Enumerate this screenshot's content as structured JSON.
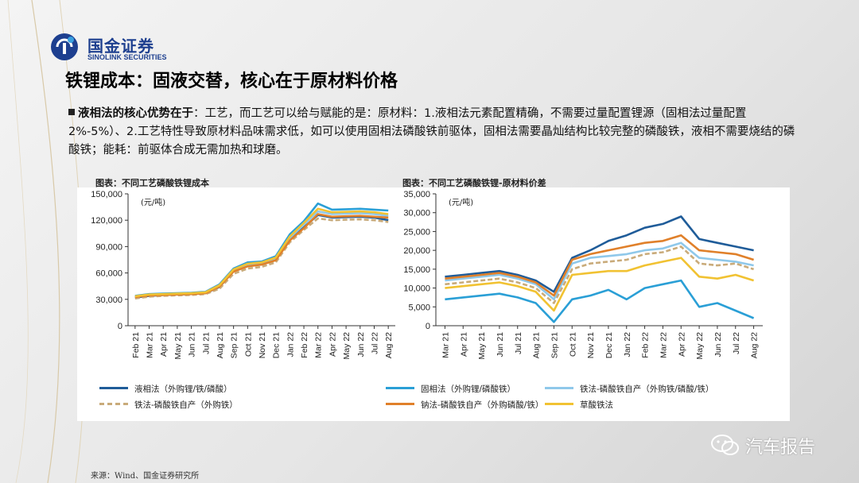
{
  "logo": {
    "name_cn": "国金证券",
    "name_en": "SINOLINK SECURITIES"
  },
  "page_title": "铁锂成本：固液交替，核心在于原材料价格",
  "bullet": {
    "lead": "液相法的核心优势在于",
    "body": "：工艺，而工艺可以给与赋能的是：原材料：1.液相法元素配置精确，不需要过量配置锂源（固相法过量配置2%-5%）、2.工艺特性导致原材料品味需求低，如可以使用固相法磷酸铁前驱体，固相法需要晶灿结构比较完整的磷酸铁，液相不需要烧结的磷酸铁；能耗：前驱体合成无需加热和球磨。"
  },
  "chart_data": [
    {
      "type": "line",
      "title": "图表：不同工艺磷酸铁锂成本",
      "unit_label": "(元/吨)",
      "ylim": [
        0,
        150000
      ],
      "yticks": [
        "0",
        "30,000",
        "60,000",
        "90,000",
        "120,000",
        "150,000"
      ],
      "ytick_values": [
        0,
        30000,
        60000,
        90000,
        120000,
        150000
      ],
      "categories": [
        "Feb 21",
        "Mar 21",
        "Apr 21",
        "May 21",
        "Jun 21",
        "Jul 21",
        "Aug 21",
        "Sep 21",
        "Oct 21",
        "Nov 21",
        "Dec 21",
        "Jan 22",
        "Feb 22",
        "Mar 22",
        "Apr 22",
        "May 22",
        "Jun 22",
        "Jul 22",
        "Aug 22"
      ],
      "series": [
        {
          "name": "液相法（外购锂/铁/磷酸）",
          "color": "#1f5c99",
          "values": [
            32000,
            34000,
            35000,
            35500,
            36000,
            37000,
            44000,
            62000,
            68000,
            70000,
            75000,
            98000,
            112000,
            126000,
            123000,
            123500,
            124000,
            123000,
            120000
          ]
        },
        {
          "name": "固相法（外购锂/磷酸铁）",
          "color": "#2a9fd6",
          "values": [
            34000,
            36000,
            36500,
            37000,
            37500,
            38500,
            47000,
            65000,
            72000,
            73000,
            79000,
            104000,
            119000,
            139000,
            132000,
            132500,
            133000,
            132000,
            131000
          ]
        },
        {
          "name": "铁法-磷酸铁自产（外购铁/磷酸/铁）",
          "color": "#8fc8ea",
          "values": [
            33000,
            35000,
            35500,
            36000,
            36500,
            37500,
            45000,
            63000,
            69500,
            71000,
            76500,
            100000,
            115000,
            130000,
            127000,
            127500,
            128000,
            127000,
            125000
          ]
        },
        {
          "name": "铁法-磷酸铁自产（外购铁）",
          "color": "#c9ab7a",
          "dashed": true,
          "values": [
            31000,
            33000,
            34000,
            34500,
            35000,
            36000,
            42000,
            59000,
            65000,
            67000,
            72000,
            95000,
            109000,
            122000,
            120000,
            120500,
            121000,
            120000,
            118000
          ]
        },
        {
          "name": "钠法-磷酸铁自产（外购磷酸/铁）",
          "color": "#e0802a",
          "values": [
            32500,
            34500,
            35000,
            35500,
            36000,
            37000,
            44500,
            61500,
            67500,
            69500,
            74500,
            97000,
            111000,
            127000,
            124000,
            124500,
            125000,
            124000,
            123000
          ]
        },
        {
          "name": "草酸铁法",
          "color": "#f1c232",
          "values": [
            33500,
            35500,
            36000,
            36500,
            37000,
            38000,
            46000,
            64000,
            70500,
            72000,
            77500,
            101500,
            117000,
            133000,
            129000,
            129500,
            130000,
            129000,
            127000
          ]
        }
      ]
    },
    {
      "type": "line",
      "title": "图表：不同工艺磷酸铁锂-原材料价差",
      "unit_label": "(元/吨)",
      "ylim": [
        0,
        35000
      ],
      "yticks": [
        "0",
        "5,000",
        "10,000",
        "15,000",
        "20,000",
        "25,000",
        "30,000",
        "35,000"
      ],
      "ytick_values": [
        0,
        5000,
        10000,
        15000,
        20000,
        25000,
        30000,
        35000
      ],
      "categories": [
        "Mar 21",
        "Apr 21",
        "May 21",
        "Jun 21",
        "Jul 21",
        "Aug 21",
        "Sep 21",
        "Oct 21",
        "Nov 21",
        "Dec 21",
        "Jan 22",
        "Feb 22",
        "Mar 22",
        "Apr 22",
        "May 22",
        "Jun 22",
        "Jul 22",
        "Aug 22"
      ],
      "series": [
        {
          "name": "液相法（外购锂/铁/磷酸）",
          "color": "#1f5c99",
          "values": [
            13000,
            13500,
            14000,
            14500,
            13500,
            12000,
            9000,
            18000,
            20000,
            22500,
            24000,
            26000,
            27000,
            29000,
            23000,
            22000,
            21000,
            20000
          ]
        },
        {
          "name": "固相法（外购锂/磷酸铁）",
          "color": "#2a9fd6",
          "values": [
            7000,
            7500,
            8000,
            8500,
            7500,
            6000,
            1000,
            7000,
            8000,
            9500,
            7000,
            10000,
            11000,
            12000,
            5000,
            6000,
            4000,
            2000
          ]
        },
        {
          "name": "铁法-磷酸铁自产（外购铁/磷酸/铁）",
          "color": "#8fc8ea",
          "values": [
            12000,
            12500,
            13000,
            13500,
            12500,
            11000,
            7000,
            16500,
            18000,
            18500,
            19000,
            20000,
            20500,
            22000,
            18000,
            17500,
            17000,
            16000
          ]
        },
        {
          "name": "铁法-磷酸铁自产（外购铁）",
          "color": "#c9ab7a",
          "dashed": true,
          "values": [
            11000,
            11500,
            12000,
            12500,
            11500,
            10000,
            6000,
            15000,
            16500,
            17000,
            17500,
            19000,
            19500,
            21000,
            16500,
            16000,
            16500,
            15000
          ]
        },
        {
          "name": "钠法-磷酸铁自产（外购磷酸/铁）",
          "color": "#e0802a",
          "values": [
            12500,
            13000,
            13500,
            14000,
            13000,
            11500,
            8000,
            17500,
            19000,
            20000,
            21000,
            22000,
            22500,
            24000,
            20000,
            19500,
            19000,
            17500
          ]
        },
        {
          "name": "草酸铁法",
          "color": "#f1c232",
          "values": [
            10000,
            10500,
            11000,
            11500,
            10500,
            9000,
            4000,
            13500,
            14000,
            14500,
            14500,
            16000,
            17000,
            18000,
            13000,
            12500,
            13500,
            12000
          ]
        }
      ]
    }
  ],
  "legend": [
    {
      "label": "液相法（外购锂/铁/磷酸）",
      "color": "#1f5c99",
      "dashed": false
    },
    {
      "label": "固相法（外购锂/磷酸铁）",
      "color": "#2a9fd6",
      "dashed": false
    },
    {
      "label": "铁法-磷酸铁自产（外购铁/磷酸/铁）",
      "color": "#8fc8ea",
      "dashed": false
    },
    {
      "label": "铁法-磷酸铁自产（外购铁）",
      "color": "#c9ab7a",
      "dashed": true
    },
    {
      "label": "钠法-磷酸铁自产（外购磷酸/铁）",
      "color": "#e0802a",
      "dashed": false
    },
    {
      "label": "草酸铁法",
      "color": "#f1c232",
      "dashed": false
    }
  ],
  "source": "来源：Wind、国金证券研究所",
  "watermark": "汽车报告"
}
